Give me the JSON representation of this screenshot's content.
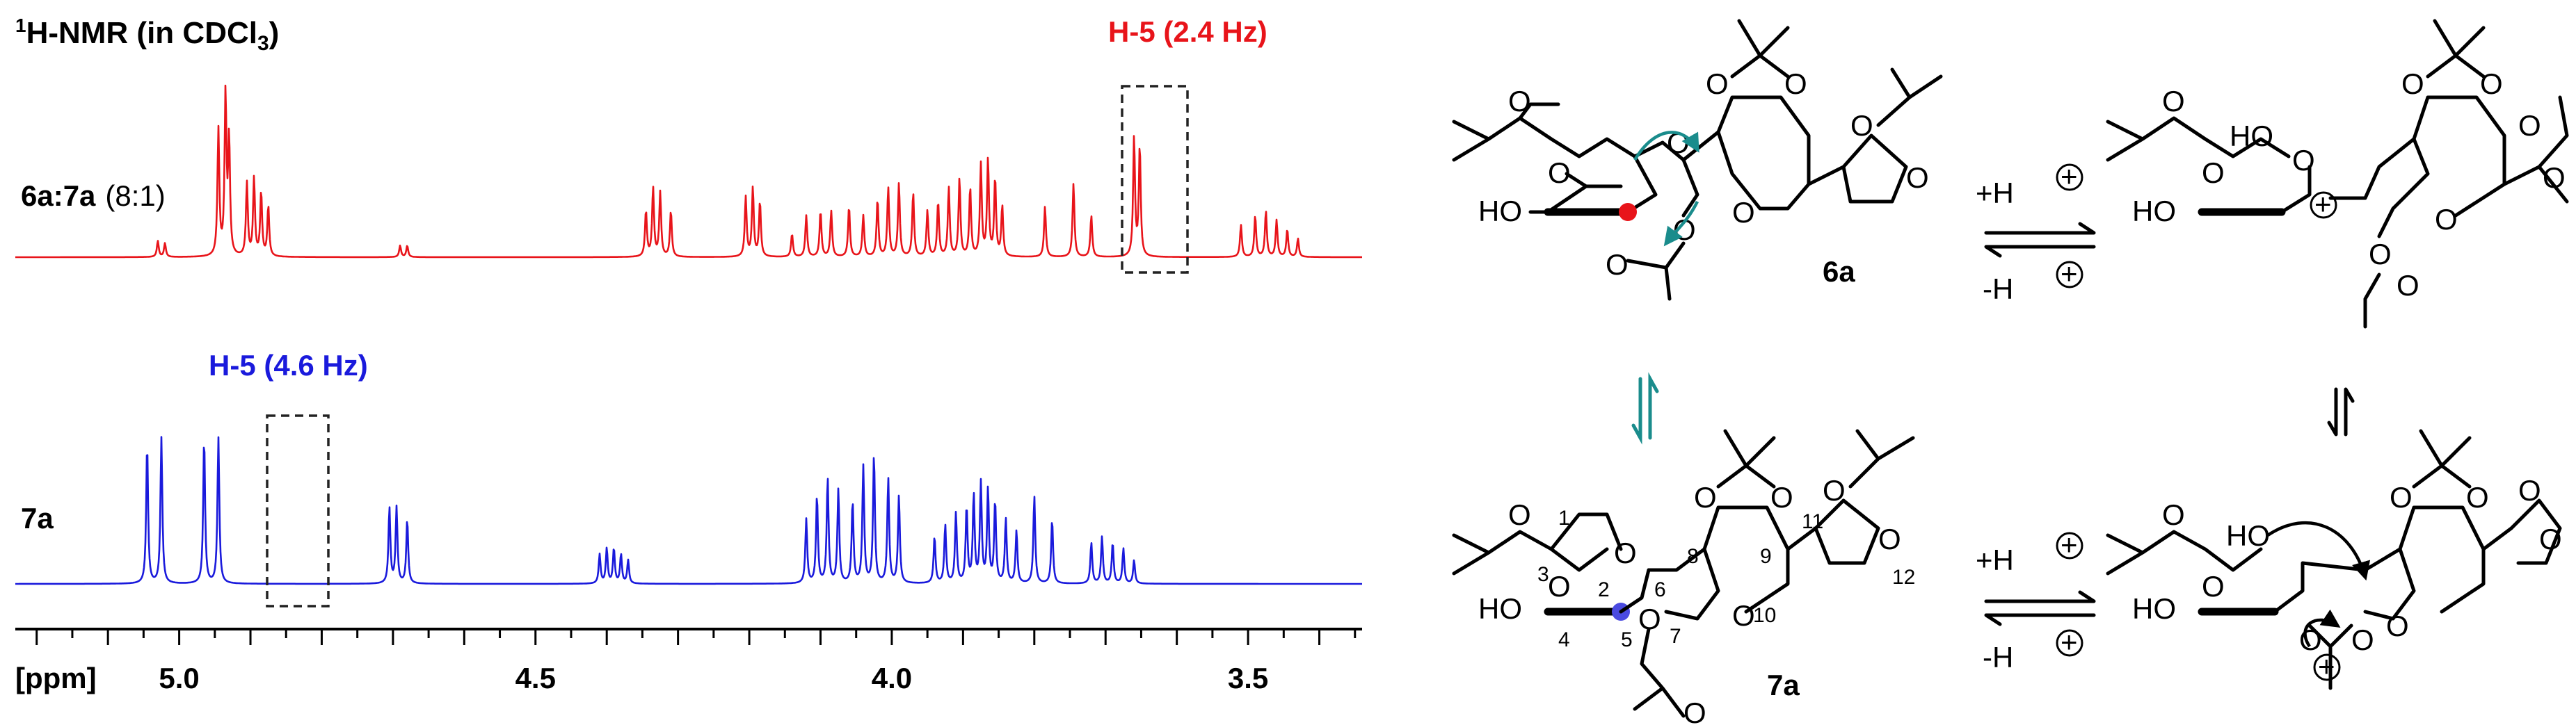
{
  "nmr": {
    "title_prefix": "1",
    "title_main": "H-NMR (in CDCl",
    "title_sub": "3",
    "title_close": ")",
    "spectrum_top": {
      "label_bold": "6a:7a",
      "label_normal": "(8:1)",
      "color": "#e8141a",
      "annotation": "H-5 (2.4 Hz)"
    },
    "spectrum_bottom": {
      "label_bold": "7a",
      "color": "#1a1adc",
      "annotation": "H-5 (4.6 Hz)"
    },
    "axis_unit": "[ppm]"
  },
  "chart_data": {
    "type": "line",
    "title": "1H-NMR (in CDCl3)",
    "xlabel": "[ppm]",
    "x_reversed": true,
    "xlim": [
      5.23,
      3.34
    ],
    "xticks": [
      "5.0",
      "4.5",
      "4.0",
      "3.5"
    ],
    "grid": false,
    "series": [
      {
        "name": "6a:7a (8:1)",
        "color": "#e8141a",
        "peaks": [
          {
            "ppm": 5.03,
            "h": 0.07
          },
          {
            "ppm": 5.02,
            "h": 0.06
          },
          {
            "ppm": 4.945,
            "h": 0.55
          },
          {
            "ppm": 4.935,
            "h": 0.7
          },
          {
            "ppm": 4.93,
            "h": 0.5
          },
          {
            "ppm": 4.905,
            "h": 0.32
          },
          {
            "ppm": 4.895,
            "h": 0.34
          },
          {
            "ppm": 4.885,
            "h": 0.28
          },
          {
            "ppm": 4.875,
            "h": 0.22
          },
          {
            "ppm": 4.69,
            "h": 0.05
          },
          {
            "ppm": 4.68,
            "h": 0.05
          },
          {
            "ppm": 4.345,
            "h": 0.2
          },
          {
            "ppm": 4.335,
            "h": 0.3
          },
          {
            "ppm": 4.325,
            "h": 0.28
          },
          {
            "ppm": 4.31,
            "h": 0.2
          },
          {
            "ppm": 4.205,
            "h": 0.26
          },
          {
            "ppm": 4.195,
            "h": 0.3
          },
          {
            "ppm": 4.185,
            "h": 0.24
          },
          {
            "ppm": 4.14,
            "h": 0.1
          },
          {
            "ppm": 4.12,
            "h": 0.18
          },
          {
            "ppm": 4.1,
            "h": 0.2
          },
          {
            "ppm": 4.085,
            "h": 0.2
          },
          {
            "ppm": 4.06,
            "h": 0.22
          },
          {
            "ppm": 4.04,
            "h": 0.18
          },
          {
            "ppm": 4.02,
            "h": 0.25
          },
          {
            "ppm": 4.005,
            "h": 0.3
          },
          {
            "ppm": 3.99,
            "h": 0.32
          },
          {
            "ppm": 3.97,
            "h": 0.28
          },
          {
            "ppm": 3.95,
            "h": 0.2
          },
          {
            "ppm": 3.935,
            "h": 0.24
          },
          {
            "ppm": 3.92,
            "h": 0.3
          },
          {
            "ppm": 3.905,
            "h": 0.34
          },
          {
            "ppm": 3.89,
            "h": 0.3
          },
          {
            "ppm": 3.875,
            "h": 0.4
          },
          {
            "ppm": 3.865,
            "h": 0.42
          },
          {
            "ppm": 3.855,
            "h": 0.34
          },
          {
            "ppm": 3.845,
            "h": 0.22
          },
          {
            "ppm": 3.785,
            "h": 0.22
          },
          {
            "ppm": 3.745,
            "h": 0.32
          },
          {
            "ppm": 3.72,
            "h": 0.18
          },
          {
            "ppm": 3.66,
            "h": 0.52
          },
          {
            "ppm": 3.652,
            "h": 0.48
          },
          {
            "ppm": 3.51,
            "h": 0.14
          },
          {
            "ppm": 3.49,
            "h": 0.18
          },
          {
            "ppm": 3.475,
            "h": 0.2
          },
          {
            "ppm": 3.46,
            "h": 0.16
          },
          {
            "ppm": 3.445,
            "h": 0.12
          },
          {
            "ppm": 3.43,
            "h": 0.08
          }
        ]
      },
      {
        "name": "7a",
        "color": "#1a1adc",
        "peaks": [
          {
            "ppm": 5.045,
            "h": 0.48
          },
          {
            "ppm": 5.025,
            "h": 0.5
          },
          {
            "ppm": 4.965,
            "h": 0.5
          },
          {
            "ppm": 4.945,
            "h": 0.5
          },
          {
            "ppm": 4.705,
            "h": 0.26
          },
          {
            "ppm": 4.695,
            "h": 0.26
          },
          {
            "ppm": 4.68,
            "h": 0.22
          },
          {
            "ppm": 4.41,
            "h": 0.1
          },
          {
            "ppm": 4.4,
            "h": 0.12
          },
          {
            "ppm": 4.39,
            "h": 0.12
          },
          {
            "ppm": 4.38,
            "h": 0.1
          },
          {
            "ppm": 4.37,
            "h": 0.08
          },
          {
            "ppm": 4.12,
            "h": 0.22
          },
          {
            "ppm": 4.105,
            "h": 0.3
          },
          {
            "ppm": 4.09,
            "h": 0.36
          },
          {
            "ppm": 4.075,
            "h": 0.32
          },
          {
            "ppm": 4.055,
            "h": 0.28
          },
          {
            "ppm": 4.04,
            "h": 0.4
          },
          {
            "ppm": 4.025,
            "h": 0.44
          },
          {
            "ppm": 4.005,
            "h": 0.36
          },
          {
            "ppm": 3.99,
            "h": 0.3
          },
          {
            "ppm": 3.94,
            "h": 0.16
          },
          {
            "ppm": 3.925,
            "h": 0.2
          },
          {
            "ppm": 3.91,
            "h": 0.24
          },
          {
            "ppm": 3.895,
            "h": 0.26
          },
          {
            "ppm": 3.885,
            "h": 0.3
          },
          {
            "ppm": 3.875,
            "h": 0.34
          },
          {
            "ppm": 3.865,
            "h": 0.32
          },
          {
            "ppm": 3.855,
            "h": 0.28
          },
          {
            "ppm": 3.84,
            "h": 0.22
          },
          {
            "ppm": 3.825,
            "h": 0.18
          },
          {
            "ppm": 3.8,
            "h": 0.3
          },
          {
            "ppm": 3.775,
            "h": 0.22
          },
          {
            "ppm": 3.72,
            "h": 0.14
          },
          {
            "ppm": 3.705,
            "h": 0.16
          },
          {
            "ppm": 3.69,
            "h": 0.14
          },
          {
            "ppm": 3.675,
            "h": 0.12
          },
          {
            "ppm": 3.66,
            "h": 0.08
          }
        ]
      }
    ],
    "annotations": [
      {
        "series": "6a:7a (8:1)",
        "text": "H-5 (2.4 Hz)",
        "ppm_range": [
          3.62,
          3.69
        ]
      },
      {
        "series": "7a",
        "text": "H-5 (4.6 Hz)",
        "ppm_range": [
          4.91,
          4.98
        ]
      }
    ]
  },
  "scheme": {
    "compound_6a": "6a",
    "compound_7a": "7a",
    "protonation": "+H",
    "deprotonation": "-H",
    "charge_symbol": "+",
    "atom_numbers": [
      "1",
      "2",
      "3",
      "4",
      "5",
      "6",
      "7",
      "8",
      "9",
      "10",
      "11",
      "12"
    ],
    "highlight_6a": "#e8141a",
    "highlight_7a": "#4a4ae0",
    "arrow_teal": "#1a8c8c"
  }
}
